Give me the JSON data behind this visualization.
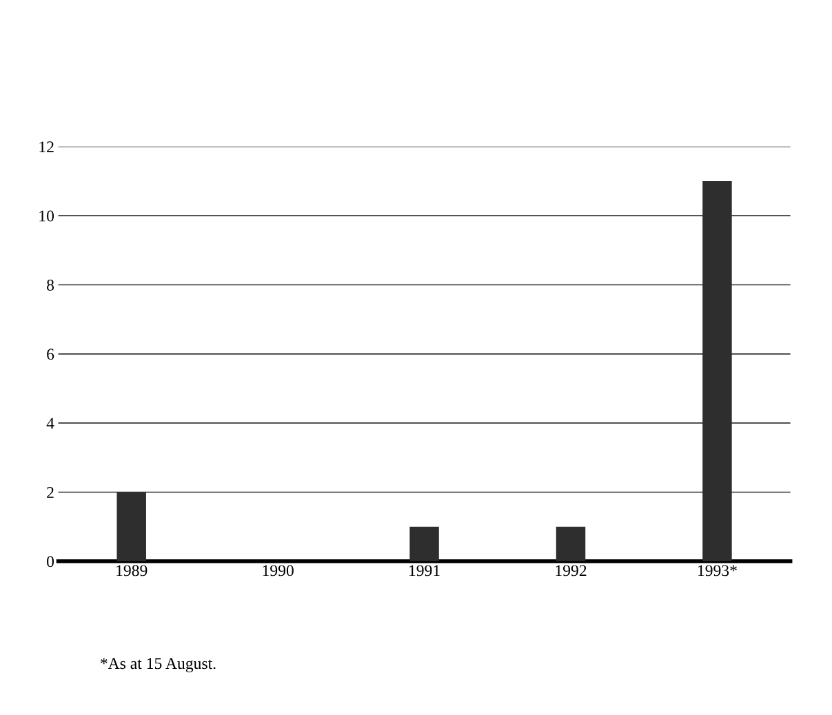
{
  "chart_data": {
    "type": "bar",
    "categories": [
      "1989",
      "1990",
      "1991",
      "1992",
      "1993*"
    ],
    "values": [
      2,
      0,
      1,
      1,
      11
    ],
    "color": "#2e2e2e",
    "ylim": [
      0,
      12
    ],
    "yticks": [
      0,
      2,
      4,
      6,
      8,
      10,
      12
    ],
    "grid": "y",
    "annotations": [
      "*As at 15 August."
    ]
  }
}
